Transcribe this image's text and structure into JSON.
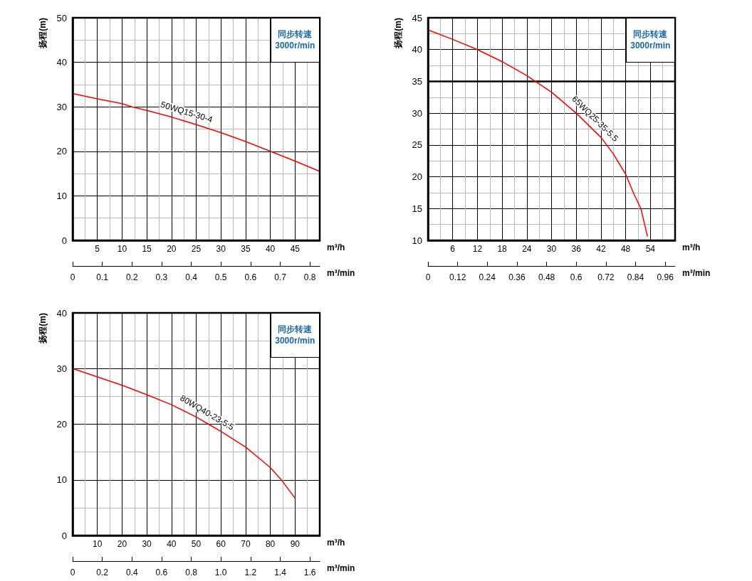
{
  "chart_data": [
    {
      "type": "line",
      "ylabel": "扬程(m)",
      "xlabel": "m³/h",
      "x2label": "m³/min",
      "annotations": [
        "同步转速",
        "3000r/min"
      ],
      "xlim": [
        0,
        50
      ],
      "xticks": [
        5,
        10,
        15,
        20,
        25,
        30,
        35,
        40,
        45
      ],
      "ylim": [
        0,
        50
      ],
      "yticks": [
        0,
        10,
        20,
        30,
        40,
        50
      ],
      "x2lim": [
        0,
        0.8333
      ],
      "x2ticks": [
        0,
        0.1,
        0.2,
        0.3,
        0.4,
        0.5,
        0.6,
        0.7,
        0.8
      ],
      "grid": true,
      "legend": false,
      "series": [
        {
          "name": "50WQ15-30-4",
          "color": "#ff0000",
          "x": [
            0,
            5,
            10,
            12,
            15,
            20,
            25,
            30,
            35,
            40,
            45,
            50
          ],
          "values": [
            33,
            31.8,
            30.7,
            30,
            29.2,
            27.7,
            26,
            24.2,
            22.2,
            20,
            17.8,
            15.5
          ]
        }
      ]
    },
    {
      "type": "line",
      "ylabel": "扬程(m)",
      "xlabel": "m³/h",
      "x2label": "m³/min",
      "annotations": [
        "同步转速",
        "3000r/min"
      ],
      "xlim": [
        0,
        60
      ],
      "xticks": [
        6,
        12,
        18,
        24,
        30,
        36,
        42,
        48,
        54
      ],
      "ylim": [
        10,
        45
      ],
      "yticks": [
        10,
        15,
        20,
        25,
        30,
        35,
        40,
        45
      ],
      "x2lim": [
        0,
        1
      ],
      "x2ticks": [
        0,
        0.12,
        0.24,
        0.36,
        0.48,
        0.6,
        0.72,
        0.84,
        0.96
      ],
      "grid": true,
      "legend": false,
      "ref_lines": [
        {
          "axis": "y",
          "value": 35,
          "color": "#000000"
        }
      ],
      "series": [
        {
          "name": "65WQ25-35-5.5",
          "color": "#ff0000",
          "x": [
            0,
            6,
            12,
            18,
            24,
            30,
            36,
            42,
            45,
            48,
            50,
            51.7,
            53.3
          ],
          "values": [
            43.1,
            41.6,
            40,
            38.1,
            35.9,
            33.3,
            30,
            26.2,
            23.6,
            20.4,
            17.3,
            15,
            10.6
          ]
        }
      ]
    },
    {
      "type": "line",
      "ylabel": "扬程(m)",
      "xlabel": "m³/h",
      "x2label": "m³/min",
      "annotations": [
        "同步转速",
        "3000r/min"
      ],
      "xlim": [
        0,
        100
      ],
      "xticks": [
        10,
        20,
        30,
        40,
        50,
        60,
        70,
        80,
        90
      ],
      "ylim": [
        0,
        40
      ],
      "yticks": [
        0,
        10,
        20,
        30,
        40
      ],
      "x2lim": [
        0,
        1.6667
      ],
      "x2ticks": [
        0,
        {
          "value": 0.2,
          "label": "0.2"
        },
        {
          "value": 0.4,
          "label": "0.4"
        },
        {
          "value": 0.6,
          "label": "0.6"
        },
        {
          "value": 0.8,
          "label": "0.8"
        },
        {
          "value": 1,
          "label": "1.0"
        },
        {
          "value": 1.2,
          "label": "1.2"
        },
        {
          "value": 1.4,
          "label": "1.4"
        },
        {
          "value": 1.6,
          "label": "1.6"
        }
      ],
      "grid": true,
      "legend": false,
      "series": [
        {
          "name": "80WQ40-23-5.5",
          "color": "#ff0000",
          "x": [
            0,
            10,
            20,
            30,
            40,
            50,
            55,
            60,
            70,
            80,
            85,
            90
          ],
          "values": [
            30,
            28.5,
            27,
            25.3,
            23.5,
            21.3,
            20,
            18.7,
            15.9,
            12.2,
            9.7,
            6.7
          ]
        }
      ]
    }
  ]
}
